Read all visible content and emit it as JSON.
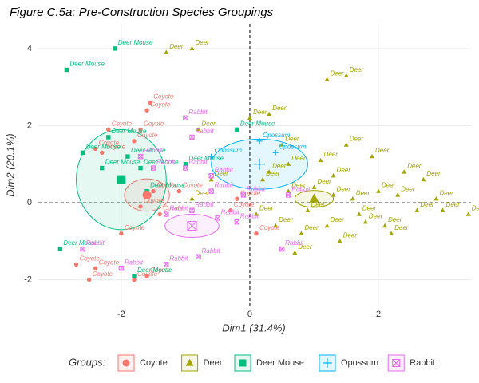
{
  "chart_data": {
    "type": "scatter",
    "title": "Figure C.5a: Pre-Construction Species Groupings",
    "x_label": "Dim1 (31.4%)",
    "y_label": "Dim2 (20.1%)",
    "legend_title": "Groups:",
    "legend_position": "bottom",
    "grid": true,
    "xlim": [
      -3.29,
      3.44
    ],
    "ylim": [
      -2.67,
      4.64
    ],
    "xticks": [
      -2,
      0,
      2
    ],
    "yticks": [
      -2,
      0,
      2,
      4
    ],
    "series": [
      {
        "name": "Coyote",
        "color": "#F8766D",
        "shape": "circle",
        "x": [
          -1.55,
          -1.6,
          -2.2,
          -1.7,
          -2.4,
          -1.8,
          -2.3,
          -1.5,
          -1.7,
          -1.4,
          -2.0,
          -2.4,
          -2.5,
          -1.8,
          -0.2,
          -0.3,
          0.1,
          -1.1,
          -2.7,
          -1.6
        ],
        "y": [
          2.6,
          2.4,
          1.9,
          1.9,
          1.4,
          1.6,
          1.3,
          0.3,
          -0.1,
          -0.3,
          -0.8,
          -1.7,
          -2.0,
          -2.0,
          0.1,
          -0.2,
          -0.8,
          0.3,
          -1.6,
          -1.9
        ],
        "center": [
          -1.6,
          0.2
        ],
        "ellipse": [
          0.35,
          0.42
        ]
      },
      {
        "name": "Deer",
        "color": "#A3A500",
        "shape": "triangle",
        "x": [
          -1.3,
          -0.9,
          1.2,
          1.5,
          -0.8,
          0.0,
          0.3,
          0.5,
          0.6,
          0.3,
          1.0,
          1.3,
          1.6,
          2.0,
          2.3,
          2.6,
          3.0,
          3.4,
          1.8,
          1.2,
          0.8,
          0.4,
          0.1,
          2.2,
          1.5,
          1.9,
          2.4,
          2.7,
          1.1,
          0.9,
          1.7,
          2.1,
          -0.6,
          -0.9,
          1.3,
          0.6,
          2.9,
          1.4,
          0.2,
          0.7
        ],
        "y": [
          3.9,
          4.0,
          3.2,
          3.3,
          1.9,
          2.2,
          2.3,
          1.5,
          1.0,
          0.8,
          0.4,
          0.2,
          0.1,
          0.3,
          0.2,
          -0.2,
          -0.2,
          -0.3,
          -0.5,
          -0.6,
          -0.8,
          -0.6,
          -0.3,
          -0.8,
          1.5,
          1.2,
          0.8,
          0.6,
          1.1,
          -0.2,
          -0.3,
          -0.6,
          0.6,
          0.1,
          0.7,
          0.3,
          0.1,
          -1.0,
          0.6,
          -1.3
        ],
        "center": [
          1.0,
          0.1
        ],
        "ellipse": [
          0.3,
          0.22
        ]
      },
      {
        "name": "Deer Mouse",
        "color": "#00BF7D",
        "shape": "square",
        "x": [
          -2.1,
          -2.85,
          -2.2,
          -2.6,
          -2.3,
          -1.9,
          -1.6,
          -1.8,
          -2.95,
          -1.7,
          -1.0,
          -0.2
        ],
        "y": [
          4.0,
          3.45,
          1.7,
          1.3,
          0.9,
          1.2,
          0.3,
          -1.9,
          -1.2,
          0.9,
          1.0,
          1.9
        ],
        "center": [
          -2.0,
          0.6
        ],
        "ellipse": [
          0.7,
          1.3
        ]
      },
      {
        "name": "Opossum",
        "color": "#00B0F6",
        "shape": "plus",
        "x": [
          0.15,
          -0.6,
          0.4
        ],
        "y": [
          1.6,
          1.2,
          1.3
        ],
        "center": [
          0.15,
          1.0
        ],
        "ellipse": [
          0.75,
          0.65
        ]
      },
      {
        "name": "Rabbit",
        "color": "#E76BF3",
        "shape": "boxcross",
        "x": [
          -1.0,
          -0.9,
          -1.7,
          -1.5,
          -1.0,
          -0.6,
          -0.6,
          -1.3,
          -0.9,
          -0.5,
          -0.2,
          -0.8,
          -1.3,
          -2.0,
          -2.6,
          0.5,
          0.6,
          -0.1
        ],
        "y": [
          2.2,
          1.7,
          1.2,
          0.9,
          0.9,
          0.7,
          0.3,
          -0.3,
          -0.2,
          -0.4,
          -0.5,
          -1.4,
          -1.6,
          -1.7,
          -1.2,
          -1.2,
          0.2,
          0.2
        ],
        "center": [
          -0.9,
          -0.6
        ],
        "ellipse": [
          0.42,
          0.3
        ]
      }
    ]
  }
}
